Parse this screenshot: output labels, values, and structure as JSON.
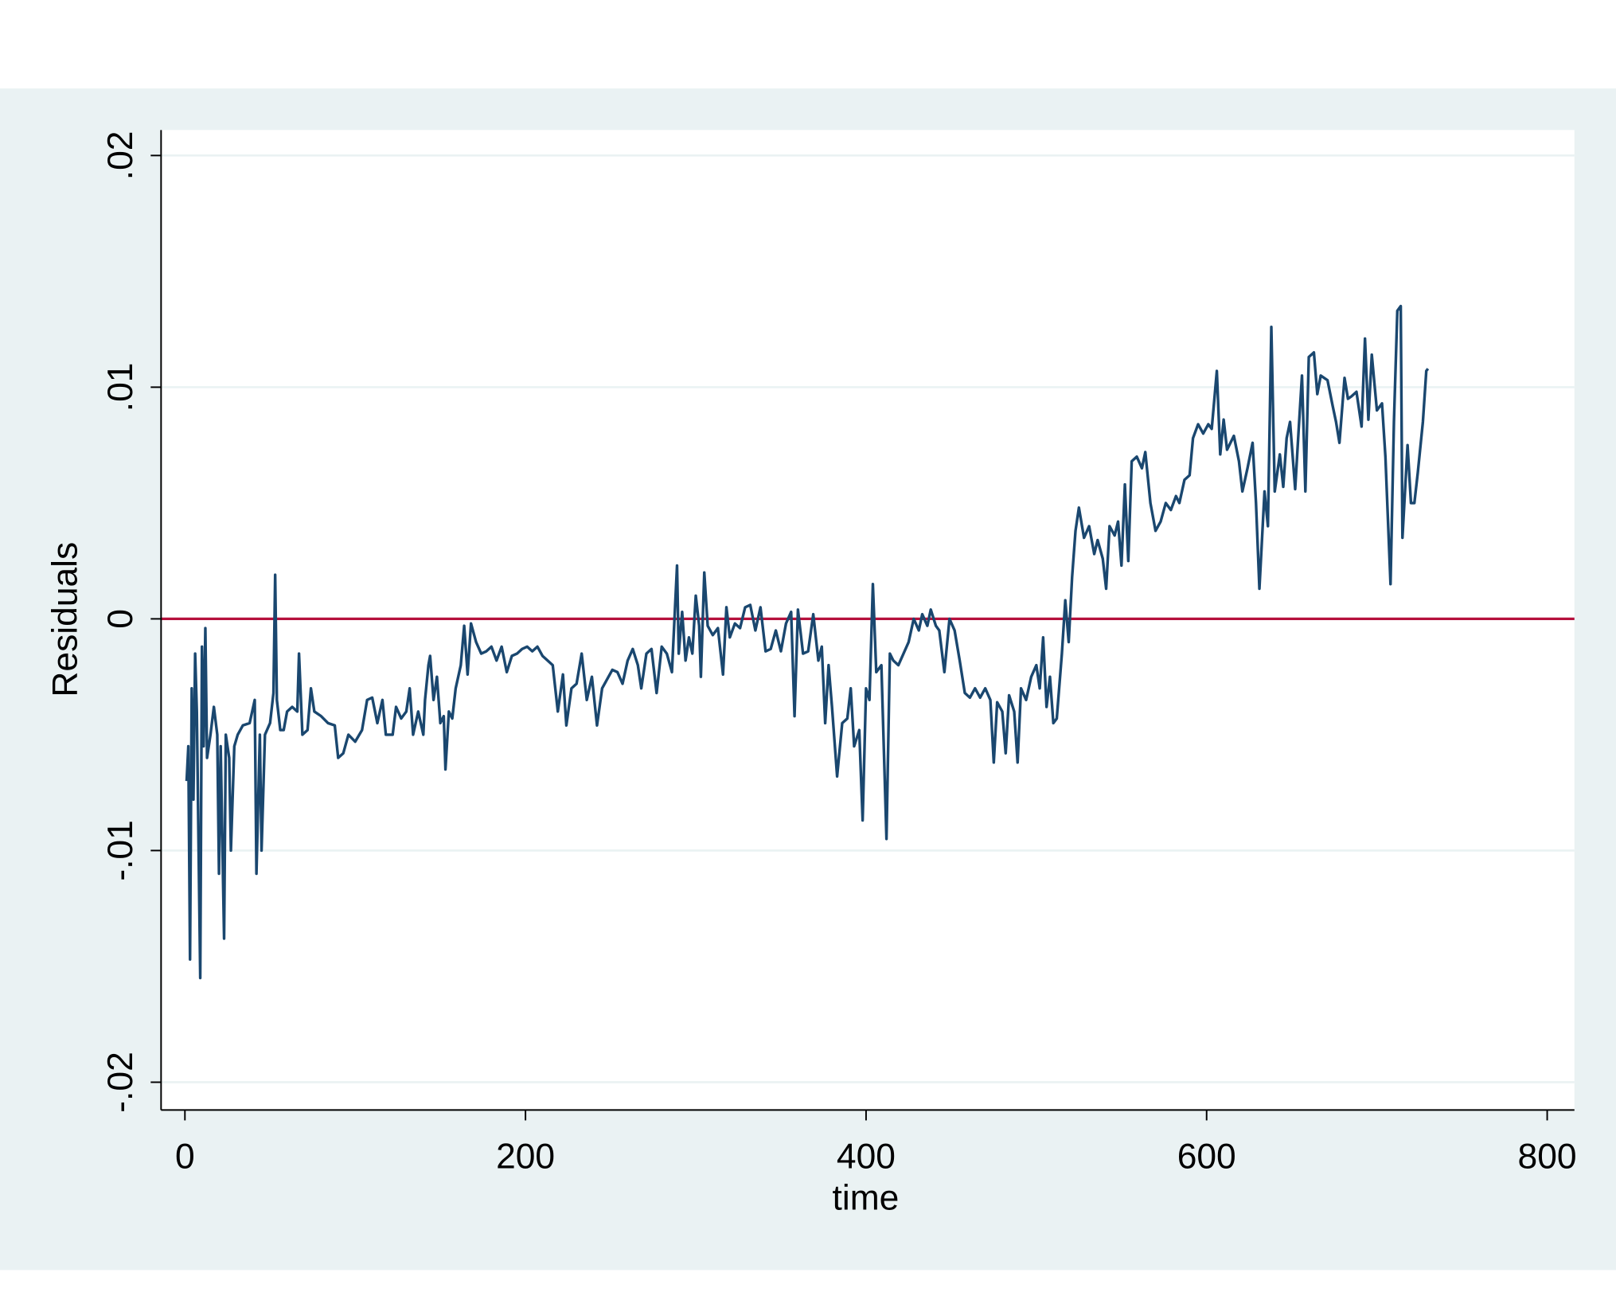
{
  "chart_data": {
    "type": "line",
    "x_label": "time",
    "y_label": "Residuals",
    "xlim": [
      -14,
      816
    ],
    "xticks": [
      0,
      200,
      400,
      600,
      800
    ],
    "ylim": [
      -0.0212,
      0.0211
    ],
    "yticks": [
      {
        "value": -0.02,
        "label": "-.02"
      },
      {
        "value": -0.01,
        "label": "-.01"
      },
      0,
      {
        "value": 0.01,
        "label": ".01"
      },
      {
        "value": 0.02,
        "label": ".02"
      }
    ],
    "grid": true,
    "reference_line": {
      "value": 0,
      "color": "#b5103c"
    },
    "x": [
      1,
      2,
      3,
      4,
      5,
      6,
      7,
      9,
      10,
      11,
      12,
      13,
      15,
      17,
      19,
      20,
      21,
      23,
      24,
      26,
      27,
      29,
      31,
      34,
      38,
      41,
      42,
      44,
      45,
      47,
      50,
      52,
      53,
      54,
      56,
      58,
      60,
      63,
      66,
      67,
      69,
      72,
      74,
      76,
      80,
      84,
      88,
      90,
      93,
      96,
      100,
      104,
      107,
      110,
      113,
      116,
      118,
      122,
      124,
      127,
      130,
      132,
      134,
      137,
      140,
      141,
      143,
      144,
      146,
      148,
      150,
      152,
      153,
      155,
      157,
      159,
      162,
      164,
      166,
      168,
      171,
      174,
      177,
      180,
      183,
      186,
      189,
      192,
      195,
      198,
      201,
      204,
      207,
      210,
      213,
      216,
      219,
      222,
      224,
      227,
      230,
      233,
      236,
      239,
      242,
      245,
      248,
      251,
      254,
      257,
      260,
      263,
      266,
      268,
      271,
      274,
      277,
      280,
      283,
      286,
      289,
      290,
      292,
      294,
      296,
      298,
      300,
      302,
      303,
      305,
      307,
      310,
      313,
      316,
      318,
      320,
      323,
      326,
      329,
      332,
      335,
      338,
      341,
      344,
      347,
      350,
      353,
      356,
      358,
      360,
      363,
      366,
      369,
      372,
      374,
      376,
      378,
      380,
      383,
      386,
      389,
      391,
      393,
      396,
      398,
      400,
      402,
      404,
      406,
      409,
      412,
      414,
      416,
      419,
      422,
      425,
      428,
      431,
      433,
      436,
      438,
      441,
      443,
      446,
      449,
      452,
      455,
      458,
      461,
      464,
      467,
      470,
      473,
      475,
      477,
      480,
      482,
      484,
      487,
      489,
      491,
      494,
      497,
      500,
      502,
      504,
      506,
      508,
      510,
      512,
      515,
      517,
      519,
      521,
      523,
      525,
      528,
      531,
      534,
      536,
      539,
      541,
      543,
      546,
      548,
      550,
      552,
      554,
      556,
      559,
      562,
      564,
      567,
      570,
      573,
      576,
      579,
      582,
      584,
      587,
      590,
      592,
      595,
      598,
      601,
      603,
      606,
      608,
      610,
      612,
      616,
      619,
      621,
      624,
      627,
      629,
      631,
      634,
      636,
      638,
      640,
      643,
      645,
      647,
      649,
      652,
      654,
      656,
      658,
      660,
      663,
      665,
      667,
      671,
      674,
      676,
      678,
      681,
      683,
      685,
      688,
      691,
      693,
      695,
      697,
      700,
      703,
      705,
      708,
      710,
      712,
      714,
      715,
      718,
      720,
      722,
      724,
      727,
      729,
      730
    ],
    "series": [
      {
        "name": "Residuals",
        "color": "#1a476f",
        "values": [
          -0.007,
          -0.0055,
          -0.0147,
          -0.003,
          -0.0078,
          -0.0015,
          -0.004,
          -0.0155,
          -0.0012,
          -0.0055,
          -0.0004,
          -0.006,
          -0.005,
          -0.0038,
          -0.005,
          -0.011,
          -0.0055,
          -0.0138,
          -0.005,
          -0.006,
          -0.01,
          -0.0055,
          -0.005,
          -0.0046,
          -0.0045,
          -0.0035,
          -0.011,
          -0.005,
          -0.01,
          -0.005,
          -0.0045,
          -0.0032,
          0.0019,
          -0.0035,
          -0.0048,
          -0.0048,
          -0.004,
          -0.0038,
          -0.004,
          -0.0015,
          -0.005,
          -0.0048,
          -0.003,
          -0.004,
          -0.0042,
          -0.0045,
          -0.0046,
          -0.006,
          -0.0058,
          -0.005,
          -0.0053,
          -0.0048,
          -0.0035,
          -0.0034,
          -0.0045,
          -0.0035,
          -0.005,
          -0.005,
          -0.0038,
          -0.0043,
          -0.004,
          -0.003,
          -0.005,
          -0.004,
          -0.005,
          -0.0035,
          -0.002,
          -0.0016,
          -0.0035,
          -0.0025,
          -0.0045,
          -0.0042,
          -0.0065,
          -0.004,
          -0.0043,
          -0.003,
          -0.002,
          -0.0003,
          -0.0024,
          -0.0002,
          -0.001,
          -0.0015,
          -0.0014,
          -0.0012,
          -0.0018,
          -0.0012,
          -0.0023,
          -0.0016,
          -0.0015,
          -0.0013,
          -0.0012,
          -0.0014,
          -0.0012,
          -0.0016,
          -0.0018,
          -0.002,
          -0.004,
          -0.0024,
          -0.0046,
          -0.003,
          -0.0028,
          -0.0015,
          -0.0035,
          -0.0025,
          -0.0046,
          -0.003,
          -0.0026,
          -0.0022,
          -0.0023,
          -0.0028,
          -0.0018,
          -0.0013,
          -0.002,
          -0.003,
          -0.0015,
          -0.0013,
          -0.0032,
          -0.0012,
          -0.0015,
          -0.0023,
          0.0023,
          -0.0015,
          0.0003,
          -0.0018,
          -0.0008,
          -0.0015,
          0.001,
          -0.0003,
          -0.0025,
          0.002,
          -0.0003,
          -0.0007,
          -0.0004,
          -0.0024,
          0.0005,
          -0.0008,
          -0.0002,
          -0.0004,
          0.0005,
          0.0006,
          -0.0005,
          0.0005,
          -0.0014,
          -0.0013,
          -0.0005,
          -0.0014,
          -0.0002,
          0.0003,
          -0.0042,
          0.0004,
          -0.0015,
          -0.0014,
          0.0002,
          -0.0018,
          -0.0012,
          -0.0045,
          -0.002,
          -0.0038,
          -0.0068,
          -0.0045,
          -0.0043,
          -0.003,
          -0.0055,
          -0.0048,
          -0.0087,
          -0.003,
          -0.0035,
          0.0015,
          -0.0023,
          -0.002,
          -0.0095,
          -0.0015,
          -0.0018,
          -0.002,
          -0.0015,
          -0.001,
          0,
          -0.0005,
          0.0002,
          -0.0003,
          0.0004,
          -0.0003,
          -0.0005,
          -0.0023,
          0,
          -0.0005,
          -0.0018,
          -0.0032,
          -0.0034,
          -0.003,
          -0.0034,
          -0.003,
          -0.0035,
          -0.0062,
          -0.0036,
          -0.004,
          -0.0058,
          -0.0033,
          -0.004,
          -0.0062,
          -0.003,
          -0.0035,
          -0.0025,
          -0.002,
          -0.003,
          -0.0008,
          -0.0038,
          -0.0025,
          -0.0045,
          -0.0043,
          -0.0015,
          0.0008,
          -0.001,
          0.0018,
          0.0038,
          0.0048,
          0.0035,
          0.004,
          0.0028,
          0.0034,
          0.0026,
          0.0013,
          0.004,
          0.0036,
          0.0042,
          0.0023,
          0.0058,
          0.0025,
          0.0068,
          0.007,
          0.0065,
          0.0072,
          0.005,
          0.0038,
          0.0042,
          0.005,
          0.0047,
          0.0053,
          0.005,
          0.006,
          0.0062,
          0.0078,
          0.0084,
          0.008,
          0.0084,
          0.0082,
          0.0107,
          0.0071,
          0.0086,
          0.0073,
          0.0079,
          0.0068,
          0.0055,
          0.0065,
          0.0076,
          0.005,
          0.0013,
          0.0055,
          0.004,
          0.0126,
          0.0055,
          0.0071,
          0.0057,
          0.0078,
          0.0085,
          0.0056,
          0.0081,
          0.0105,
          0.0055,
          0.0113,
          0.0115,
          0.0097,
          0.0105,
          0.0103,
          0.0092,
          0.0085,
          0.0076,
          0.0104,
          0.0095,
          0.0096,
          0.0098,
          0.0083,
          0.0121,
          0.0086,
          0.0114,
          0.009,
          0.0093,
          0.007,
          0.0015,
          0.0085,
          0.0133,
          0.0135,
          0.0035,
          0.0075,
          0.005,
          0.005,
          0.0063,
          0.0085,
          0.0107,
          0.0108
        ]
      }
    ]
  }
}
